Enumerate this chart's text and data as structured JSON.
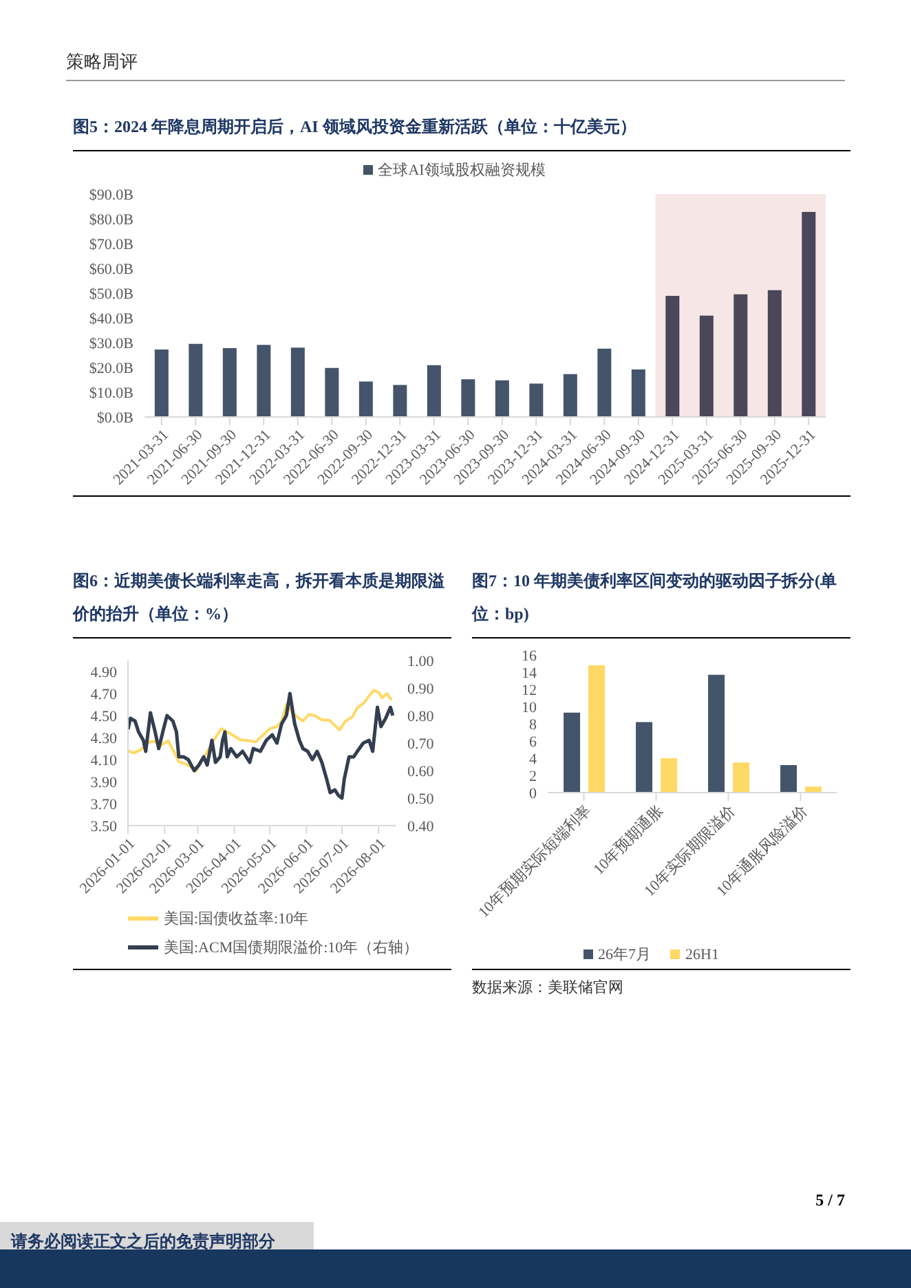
{
  "chart_data": [
    {
      "type": "bar",
      "title": "图5：2024 年降息周期开启后，AI 领域风投资金重新活跃（单位：十亿美元）",
      "legend": "top",
      "annotations": [
        "策略周评"
      ],
      "categories": [
        "2021-03-31",
        "2021-06-30",
        "2021-09-30",
        "2021-12-31",
        "2022-03-31",
        "2022-06-30",
        "2022-09-30",
        "2022-12-31",
        "2023-03-31",
        "2023-06-30",
        "2023-09-30",
        "2023-12-31",
        "2024-03-31",
        "2024-06-30",
        "2024-09-30",
        "2024-12-31",
        "2025-03-31",
        "2025-06-30",
        "2025-09-30",
        "2025-12-31"
      ],
      "series": [
        {
          "name": "全球AI领域股权融资规模",
          "color": "#44546a",
          "colors": [
            "#44546a",
            "#44546a",
            "#44546a",
            "#44546a",
            "#44546a",
            "#44546a",
            "#44546a",
            "#44546a",
            "#44546a",
            "#44546a",
            "#44546a",
            "#44546a",
            "#44546a",
            "#44546a",
            "#44546a",
            "#4b4659",
            "#4b4659",
            "#4b4659",
            "#4b4659",
            "#4b4659"
          ],
          "values": [
            27.2,
            29.5,
            27.8,
            29.1,
            28.0,
            19.8,
            14.3,
            12.9,
            20.9,
            15.2,
            14.8,
            13.5,
            17.3,
            27.6,
            19.2,
            48.9,
            40.9,
            49.5,
            51.2,
            82.8
          ]
        }
      ],
      "ylim": [
        0,
        90
      ],
      "yticks": [
        {
          "value": 0,
          "label": "$0.0B"
        },
        {
          "value": 10,
          "label": "$10.0B"
        },
        {
          "value": 20,
          "label": "$20.0B"
        },
        {
          "value": 30,
          "label": "$30.0B"
        },
        {
          "value": 40,
          "label": "$40.0B"
        },
        {
          "value": 50,
          "label": "$50.0B"
        },
        {
          "value": 60,
          "label": "$60.0B"
        },
        {
          "value": 70,
          "label": "$70.0B"
        },
        {
          "value": 80,
          "label": "$80.0B"
        },
        {
          "value": 90,
          "label": "$90.0B"
        }
      ],
      "bands": [
        {
          "axis": "x",
          "from": "2024-12-31",
          "to": "2025-12-31",
          "color": "#f2dcdb"
        }
      ]
    },
    {
      "type": "line",
      "title": "图6：近期美债长端利率走高，拆开看本质是期限溢价的抬升（单位：%）",
      "legend": "bottom",
      "series": [
        {
          "name": "美国:国债收益率:10年",
          "color": "#ffd966",
          "x": [
            "2026-01-01",
            "2026-01-06",
            "2026-01-12",
            "2026-01-17",
            "2026-01-23",
            "2026-01-29",
            "2026-02-04",
            "2026-02-09",
            "2026-02-13",
            "2026-02-19",
            "2026-02-25",
            "2026-02-27",
            "2026-03-04",
            "2026-03-10",
            "2026-03-16",
            "2026-03-21",
            "2026-03-26",
            "2026-03-31",
            "2026-04-06",
            "2026-04-14",
            "2026-04-19",
            "2026-04-25",
            "2026-05-01",
            "2026-05-07",
            "2026-05-11",
            "2026-05-15",
            "2026-05-20",
            "2026-05-25",
            "2026-05-29",
            "2026-06-03",
            "2026-06-08",
            "2026-06-14",
            "2026-06-20",
            "2026-06-25",
            "2026-06-29",
            "2026-07-04",
            "2026-07-10",
            "2026-07-14",
            "2026-07-20",
            "2026-07-24",
            "2026-07-28",
            "2026-08-01",
            "2026-08-04",
            "2026-08-08",
            "2026-08-12"
          ],
          "values": [
            4.18,
            4.16,
            4.19,
            4.25,
            4.27,
            4.23,
            4.27,
            4.17,
            4.08,
            4.06,
            4.02,
            3.99,
            4.08,
            4.19,
            4.3,
            4.38,
            4.35,
            4.32,
            4.28,
            4.27,
            4.26,
            4.32,
            4.38,
            4.4,
            4.45,
            4.6,
            4.53,
            4.48,
            4.45,
            4.51,
            4.5,
            4.46,
            4.46,
            4.41,
            4.37,
            4.45,
            4.49,
            4.57,
            4.62,
            4.68,
            4.73,
            4.71,
            4.66,
            4.7,
            4.64
          ]
        },
        {
          "name": "美国:ACM国债期限溢价:10年（右轴）",
          "color": "#333f50",
          "axis": "y2",
          "x": [
            "2026-01-01",
            "2026-01-03",
            "2026-01-07",
            "2026-01-10",
            "2026-01-14",
            "2026-01-16",
            "2026-01-20",
            "2026-01-24",
            "2026-01-27",
            "2026-01-31",
            "2026-02-03",
            "2026-02-08",
            "2026-02-11",
            "2026-02-13",
            "2026-02-17",
            "2026-02-21",
            "2026-02-26",
            "2026-03-02",
            "2026-03-06",
            "2026-03-09",
            "2026-03-13",
            "2026-03-16",
            "2026-03-20",
            "2026-03-22",
            "2026-03-24",
            "2026-03-26",
            "2026-03-29",
            "2026-04-03",
            "2026-04-08",
            "2026-04-14",
            "2026-04-17",
            "2026-04-23",
            "2026-04-28",
            "2026-05-03",
            "2026-05-07",
            "2026-05-11",
            "2026-05-15",
            "2026-05-18",
            "2026-05-22",
            "2026-05-26",
            "2026-05-29",
            "2026-06-02",
            "2026-06-06",
            "2026-06-10",
            "2026-06-14",
            "2026-06-18",
            "2026-06-21",
            "2026-06-25",
            "2026-06-28",
            "2026-07-01",
            "2026-07-03",
            "2026-07-07",
            "2026-07-11",
            "2026-07-14",
            "2026-07-19",
            "2026-07-24",
            "2026-07-27",
            "2026-07-29",
            "2026-07-31",
            "2026-08-03",
            "2026-08-07",
            "2026-08-11",
            "2026-08-13"
          ],
          "values": [
            0.75,
            0.79,
            0.78,
            0.74,
            0.71,
            0.67,
            0.81,
            0.74,
            0.68,
            0.75,
            0.8,
            0.78,
            0.74,
            0.65,
            0.65,
            0.64,
            0.6,
            0.62,
            0.65,
            0.62,
            0.71,
            0.63,
            0.65,
            0.71,
            0.74,
            0.65,
            0.68,
            0.65,
            0.67,
            0.63,
            0.68,
            0.67,
            0.71,
            0.73,
            0.7,
            0.77,
            0.8,
            0.88,
            0.77,
            0.71,
            0.68,
            0.67,
            0.64,
            0.67,
            0.63,
            0.57,
            0.52,
            0.53,
            0.51,
            0.5,
            0.57,
            0.65,
            0.65,
            0.67,
            0.7,
            0.71,
            0.67,
            0.75,
            0.83,
            0.76,
            0.79,
            0.83,
            0.8
          ]
        }
      ],
      "xlim": [
        "2026-01-01",
        "2026-08-16"
      ],
      "xticks": [
        "2026-01-01",
        "2026-02-01",
        "2026-03-01",
        "2026-04-01",
        "2026-05-01",
        "2026-06-01",
        "2026-07-01",
        "2026-08-01"
      ],
      "ylim": [
        3.5,
        5.0
      ],
      "yticks": [
        {
          "value": 3.5,
          "label": "3.50"
        },
        {
          "value": 3.7,
          "label": "3.70"
        },
        {
          "value": 3.9,
          "label": "3.90"
        },
        {
          "value": 4.1,
          "label": "4.10"
        },
        {
          "value": 4.3,
          "label": "4.30"
        },
        {
          "value": 4.5,
          "label": "4.50"
        },
        {
          "value": 4.7,
          "label": "4.70"
        },
        {
          "value": 4.9,
          "label": "4.90"
        }
      ],
      "y2lim": [
        0.4,
        1.0
      ],
      "y2ticks": [
        {
          "value": 0.4,
          "label": "0.40"
        },
        {
          "value": 0.5,
          "label": "0.50"
        },
        {
          "value": 0.6,
          "label": "0.60"
        },
        {
          "value": 0.7,
          "label": "0.70"
        },
        {
          "value": 0.8,
          "label": "0.80"
        },
        {
          "value": 0.9,
          "label": "0.90"
        },
        {
          "value": 1.0,
          "label": "1.00"
        }
      ]
    },
    {
      "type": "bar",
      "title": "图7：10 年期美债利率区间变动的驱动因子拆分(单位：bp)",
      "legend": "bottom",
      "annotations": [
        "数据来源：美联储官网",
        "5 / 7",
        "请务必阅读正文之后的免责声明部分"
      ],
      "categories": [
        "10年预期实际短端利率",
        "10年预期通胀",
        "10年实际期限溢价",
        "10年通胀风险溢价"
      ],
      "series": [
        {
          "name": "26年7月",
          "color": "#44546a",
          "values": [
            9.3,
            8.2,
            13.7,
            3.2
          ]
        },
        {
          "name": "26H1",
          "color": "#ffd966",
          "values": [
            14.8,
            4.0,
            3.5,
            0.7
          ]
        }
      ],
      "ylim": [
        0,
        16
      ],
      "yticks": [
        0,
        2,
        4,
        6,
        8,
        10,
        12,
        14,
        16
      ]
    }
  ]
}
